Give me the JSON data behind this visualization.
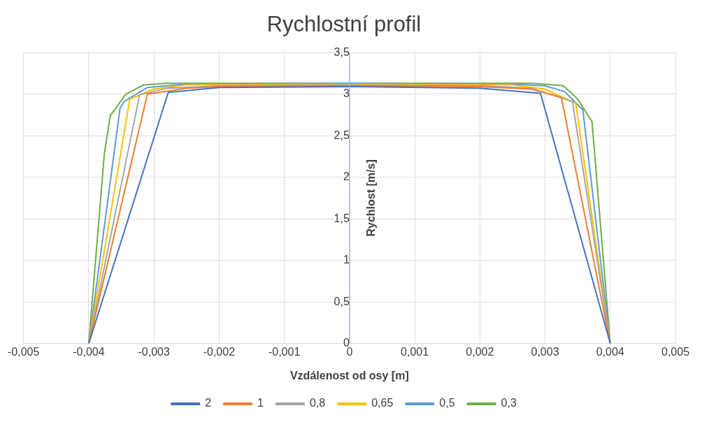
{
  "chart_data": {
    "type": "line",
    "title": "Rychlostní profil",
    "xlabel": "Vzdálenost od osy [m]",
    "ylabel": "Rychlost [m/s]",
    "xlim": [
      -0.005,
      0.005
    ],
    "xticks": [
      {
        "value": -0.005,
        "label": "-0,005"
      },
      {
        "value": -0.004,
        "label": "-0,004"
      },
      {
        "value": -0.003,
        "label": "-0,003"
      },
      {
        "value": -0.002,
        "label": "-0,002"
      },
      {
        "value": -0.001,
        "label": "-0,001"
      },
      {
        "value": 0,
        "label": "0"
      },
      {
        "value": 0.001,
        "label": "0,001"
      },
      {
        "value": 0.002,
        "label": "0,002"
      },
      {
        "value": 0.003,
        "label": "0,003"
      },
      {
        "value": 0.004,
        "label": "0,004"
      },
      {
        "value": 0.005,
        "label": "0,005"
      }
    ],
    "ylim": [
      0,
      3.5
    ],
    "yticks": [
      {
        "value": 0,
        "label": "0"
      },
      {
        "value": 0.5,
        "label": "0,5"
      },
      {
        "value": 1,
        "label": "1"
      },
      {
        "value": 1.5,
        "label": "1,5"
      },
      {
        "value": 2,
        "label": "2"
      },
      {
        "value": 2.5,
        "label": "2,5"
      },
      {
        "value": 3,
        "label": "3"
      },
      {
        "value": 3.5,
        "label": "3,5"
      }
    ],
    "grid": true,
    "legend": "bottom",
    "marker": "none",
    "line_style": "solid",
    "series": [
      {
        "name": "2",
        "color": "#4472c4",
        "x": [
          -0.004,
          -0.00278,
          -0.002,
          0,
          0.002,
          0.00293,
          0.004
        ],
        "values": [
          0,
          3.02,
          3.08,
          3.09,
          3.07,
          3.01,
          0
        ]
      },
      {
        "name": "1",
        "color": "#ed7d31",
        "x": [
          -0.004,
          -0.0031,
          -0.0025,
          -0.002,
          0,
          0.002,
          0.0028,
          0.00325,
          0.004
        ],
        "values": [
          0,
          3.0,
          3.07,
          3.09,
          3.1,
          3.09,
          3.06,
          2.96,
          0
        ]
      },
      {
        "name": "0,8",
        "color": "#a5a5a5",
        "x": [
          -0.004,
          -0.00322,
          -0.0028,
          -0.002,
          0,
          0.002,
          0.0028,
          0.00342,
          0.004
        ],
        "values": [
          0,
          2.99,
          3.07,
          3.1,
          3.11,
          3.1,
          3.07,
          2.91,
          0
        ]
      },
      {
        "name": "0,65",
        "color": "#ffc000",
        "x": [
          -0.004,
          -0.00337,
          -0.003,
          -0.0025,
          0,
          0.0025,
          0.003,
          0.00347,
          0.004
        ],
        "values": [
          0,
          2.94,
          3.06,
          3.11,
          3.12,
          3.11,
          3.06,
          2.89,
          0
        ]
      },
      {
        "name": "0,5",
        "color": "#5b9bd5",
        "x": [
          -0.004,
          -0.00352,
          -0.00346,
          -0.0031,
          -0.0025,
          0,
          0.0025,
          0.003,
          0.0033,
          0.00358,
          0.004
        ],
        "values": [
          0,
          2.83,
          2.91,
          3.08,
          3.12,
          3.13,
          3.12,
          3.1,
          3.03,
          2.81,
          0
        ]
      },
      {
        "name": "0,3",
        "color": "#70ad47",
        "x": [
          -0.004,
          -0.00376,
          -0.00367,
          -0.00343,
          -0.00316,
          -0.0028,
          0,
          0.0028,
          0.003,
          0.00328,
          0.00349,
          0.00372,
          0.004
        ],
        "values": [
          0,
          2.29,
          2.74,
          3.0,
          3.11,
          3.13,
          3.13,
          3.13,
          3.12,
          3.1,
          2.95,
          2.67,
          0
        ]
      }
    ]
  }
}
